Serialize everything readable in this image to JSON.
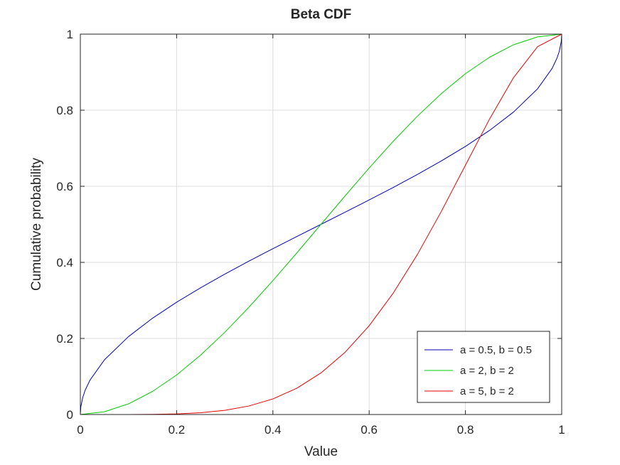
{
  "chart_data": {
    "type": "line",
    "title": "Beta CDF",
    "xlabel": "Value",
    "ylabel": "Cumulative probability",
    "xlim": [
      0,
      1
    ],
    "ylim": [
      0,
      1
    ],
    "xticks": [
      "0",
      "0.2",
      "0.4",
      "0.6",
      "0.8",
      "1"
    ],
    "yticks": [
      "0",
      "0.2",
      "0.4",
      "0.6",
      "0.8",
      "1"
    ],
    "grid": true,
    "legend_position": "bottom-right",
    "series": [
      {
        "name": "a = 0.5, b = 0.5",
        "color": "#0000b3",
        "x": [
          0,
          0.001,
          0.005,
          0.01,
          0.02,
          0.05,
          0.1,
          0.15,
          0.2,
          0.25,
          0.3,
          0.35,
          0.4,
          0.45,
          0.5,
          0.55,
          0.6,
          0.65,
          0.7,
          0.75,
          0.8,
          0.85,
          0.9,
          0.95,
          0.98,
          0.99,
          0.995,
          0.999,
          1
        ],
        "y": [
          0,
          0.0201,
          0.0451,
          0.0638,
          0.0903,
          0.1436,
          0.2048,
          0.2532,
          0.2952,
          0.3333,
          0.369,
          0.4031,
          0.4359,
          0.4682,
          0.5,
          0.5318,
          0.5641,
          0.5969,
          0.631,
          0.6667,
          0.7048,
          0.7468,
          0.7952,
          0.8564,
          0.9097,
          0.9362,
          0.9549,
          0.9799,
          1
        ]
      },
      {
        "name": "a = 2, b = 2",
        "color": "#00cc00",
        "x": [
          0,
          0.05,
          0.1,
          0.15,
          0.2,
          0.25,
          0.3,
          0.35,
          0.4,
          0.45,
          0.5,
          0.55,
          0.6,
          0.65,
          0.7,
          0.75,
          0.8,
          0.85,
          0.9,
          0.95,
          1
        ],
        "y": [
          0,
          0.00725,
          0.028,
          0.06075,
          0.104,
          0.15625,
          0.216,
          0.28175,
          0.352,
          0.42525,
          0.5,
          0.57475,
          0.648,
          0.71825,
          0.784,
          0.84375,
          0.896,
          0.93925,
          0.972,
          0.99275,
          1
        ]
      },
      {
        "name": "a = 5, b = 2",
        "color": "#e60000",
        "x": [
          0,
          0.1,
          0.15,
          0.2,
          0.25,
          0.3,
          0.35,
          0.4,
          0.45,
          0.5,
          0.55,
          0.6,
          0.65,
          0.7,
          0.75,
          0.8,
          0.85,
          0.9,
          0.95,
          1
        ],
        "y": [
          0,
          6e-05,
          0.0004,
          0.0016,
          0.0046,
          0.0109,
          0.0223,
          0.041,
          0.0692,
          0.1094,
          0.1636,
          0.2333,
          0.3191,
          0.4202,
          0.534,
          0.6554,
          0.7765,
          0.8857,
          0.9672,
          1
        ]
      }
    ]
  }
}
